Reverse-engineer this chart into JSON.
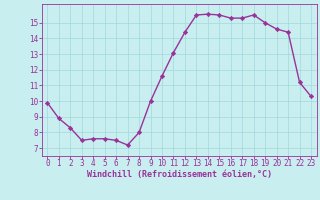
{
  "x": [
    0,
    1,
    2,
    3,
    4,
    5,
    6,
    7,
    8,
    9,
    10,
    11,
    12,
    13,
    14,
    15,
    16,
    17,
    18,
    19,
    20,
    21,
    22,
    23
  ],
  "y": [
    9.9,
    8.9,
    8.3,
    7.5,
    7.6,
    7.6,
    7.5,
    7.2,
    8.0,
    10.0,
    11.6,
    13.1,
    14.4,
    15.5,
    15.55,
    15.5,
    15.3,
    15.3,
    15.5,
    15.0,
    14.6,
    14.4,
    11.2,
    10.3
  ],
  "line_color": "#993399",
  "marker": "D",
  "marker_size": 2.2,
  "bg_color": "#c8eef0",
  "grid_color": "#a0d8dc",
  "xlabel": "Windchill (Refroidissement éolien,°C)",
  "xlabel_color": "#993399",
  "tick_color": "#993399",
  "label_color": "#993399",
  "spine_color": "#993399",
  "ylim_min": 6.5,
  "ylim_max": 16.2,
  "xlim_min": -0.5,
  "xlim_max": 23.5,
  "yticks": [
    7,
    8,
    9,
    10,
    11,
    12,
    13,
    14,
    15
  ],
  "xticks": [
    0,
    1,
    2,
    3,
    4,
    5,
    6,
    7,
    8,
    9,
    10,
    11,
    12,
    13,
    14,
    15,
    16,
    17,
    18,
    19,
    20,
    21,
    22,
    23
  ],
  "tick_fontsize": 5.5,
  "xlabel_fontsize": 6.0,
  "xlabel_fontweight": "bold",
  "linewidth": 1.0
}
